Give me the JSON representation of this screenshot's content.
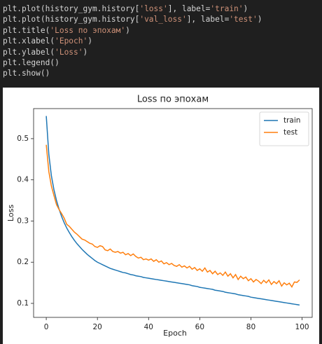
{
  "code": {
    "lines": [
      [
        {
          "text": "plt.plot(history_gym.history[",
          "color": "#d4d4d4"
        },
        {
          "text": "'loss'",
          "color": "#ce9178"
        },
        {
          "text": "], label=",
          "color": "#d4d4d4"
        },
        {
          "text": "'train'",
          "color": "#ce9178"
        },
        {
          "text": ")",
          "color": "#d4d4d4"
        }
      ],
      [
        {
          "text": "plt.plot(history_gym.history[",
          "color": "#d4d4d4"
        },
        {
          "text": "'val_loss'",
          "color": "#ce9178"
        },
        {
          "text": "], label=",
          "color": "#d4d4d4"
        },
        {
          "text": "'test'",
          "color": "#ce9178"
        },
        {
          "text": ")",
          "color": "#d4d4d4"
        }
      ],
      [
        {
          "text": "plt.title(",
          "color": "#d4d4d4"
        },
        {
          "text": "'Loss по эпохам'",
          "color": "#ce9178"
        },
        {
          "text": ")",
          "color": "#d4d4d4"
        }
      ],
      [
        {
          "text": "plt.xlabel(",
          "color": "#d4d4d4"
        },
        {
          "text": "'Epoch'",
          "color": "#ce9178"
        },
        {
          "text": ")",
          "color": "#d4d4d4"
        }
      ],
      [
        {
          "text": "plt.ylabel(",
          "color": "#d4d4d4"
        },
        {
          "text": "'Loss'",
          "color": "#ce9178"
        },
        {
          "text": ")",
          "color": "#d4d4d4"
        }
      ],
      [
        {
          "text": "plt.legend()",
          "color": "#d4d4d4"
        }
      ],
      [
        {
          "text": "plt.show()",
          "color": "#d4d4d4"
        }
      ]
    ]
  },
  "chart_data": {
    "type": "line",
    "title": "Loss по эпохам",
    "xlabel": "Epoch",
    "ylabel": "Loss",
    "x": [
      0,
      1,
      2,
      3,
      4,
      5,
      6,
      7,
      8,
      9,
      10,
      11,
      12,
      13,
      14,
      15,
      16,
      17,
      18,
      19,
      20,
      21,
      22,
      23,
      24,
      25,
      26,
      27,
      28,
      29,
      30,
      31,
      32,
      33,
      34,
      35,
      36,
      37,
      38,
      39,
      40,
      41,
      42,
      43,
      44,
      45,
      46,
      47,
      48,
      49,
      50,
      51,
      52,
      53,
      54,
      55,
      56,
      57,
      58,
      59,
      60,
      61,
      62,
      63,
      64,
      65,
      66,
      67,
      68,
      69,
      70,
      71,
      72,
      73,
      74,
      75,
      76,
      77,
      78,
      79,
      80,
      81,
      82,
      83,
      84,
      85,
      86,
      87,
      88,
      89,
      90,
      91,
      92,
      93,
      94,
      95,
      96,
      97,
      98,
      99
    ],
    "series": [
      {
        "name": "train",
        "color": "#1f77b4",
        "values": [
          0.555,
          0.462,
          0.41,
          0.376,
          0.35,
          0.329,
          0.311,
          0.296,
          0.283,
          0.272,
          0.262,
          0.253,
          0.245,
          0.238,
          0.231,
          0.225,
          0.219,
          0.214,
          0.209,
          0.204,
          0.2,
          0.197,
          0.194,
          0.191,
          0.188,
          0.185,
          0.183,
          0.181,
          0.179,
          0.177,
          0.175,
          0.174,
          0.172,
          0.17,
          0.169,
          0.167,
          0.166,
          0.165,
          0.163,
          0.162,
          0.161,
          0.16,
          0.159,
          0.158,
          0.157,
          0.156,
          0.155,
          0.154,
          0.153,
          0.152,
          0.151,
          0.15,
          0.149,
          0.148,
          0.147,
          0.146,
          0.145,
          0.143,
          0.142,
          0.141,
          0.139,
          0.138,
          0.137,
          0.136,
          0.135,
          0.134,
          0.132,
          0.131,
          0.13,
          0.129,
          0.127,
          0.126,
          0.125,
          0.124,
          0.123,
          0.121,
          0.12,
          0.119,
          0.118,
          0.117,
          0.115,
          0.114,
          0.113,
          0.112,
          0.111,
          0.11,
          0.109,
          0.108,
          0.107,
          0.106,
          0.105,
          0.104,
          0.103,
          0.102,
          0.101,
          0.1,
          0.099,
          0.098,
          0.097,
          0.096
        ]
      },
      {
        "name": "test",
        "color": "#ff7f0e",
        "values": [
          0.485,
          0.42,
          0.385,
          0.362,
          0.34,
          0.328,
          0.318,
          0.307,
          0.292,
          0.287,
          0.28,
          0.273,
          0.268,
          0.262,
          0.256,
          0.254,
          0.25,
          0.246,
          0.244,
          0.238,
          0.236,
          0.24,
          0.238,
          0.23,
          0.228,
          0.232,
          0.226,
          0.224,
          0.226,
          0.222,
          0.224,
          0.218,
          0.221,
          0.216,
          0.22,
          0.214,
          0.21,
          0.212,
          0.206,
          0.208,
          0.205,
          0.208,
          0.202,
          0.206,
          0.2,
          0.203,
          0.196,
          0.199,
          0.194,
          0.197,
          0.192,
          0.19,
          0.194,
          0.188,
          0.191,
          0.186,
          0.19,
          0.183,
          0.187,
          0.18,
          0.184,
          0.178,
          0.186,
          0.176,
          0.18,
          0.172,
          0.178,
          0.17,
          0.174,
          0.168,
          0.176,
          0.166,
          0.172,
          0.162,
          0.17,
          0.158,
          0.166,
          0.16,
          0.164,
          0.155,
          0.16,
          0.152,
          0.158,
          0.154,
          0.148,
          0.156,
          0.15,
          0.157,
          0.146,
          0.153,
          0.148,
          0.155,
          0.142,
          0.15,
          0.145,
          0.149,
          0.14,
          0.152,
          0.151,
          0.157
        ]
      }
    ],
    "xlim": [
      -4.95,
      103.95
    ],
    "xticks": [
      0,
      20,
      40,
      60,
      80,
      100
    ],
    "ylim": [
      0.066,
      0.573
    ],
    "yticks": [
      0.1,
      0.2,
      0.3,
      0.4,
      0.5
    ],
    "legend": "upper right"
  }
}
